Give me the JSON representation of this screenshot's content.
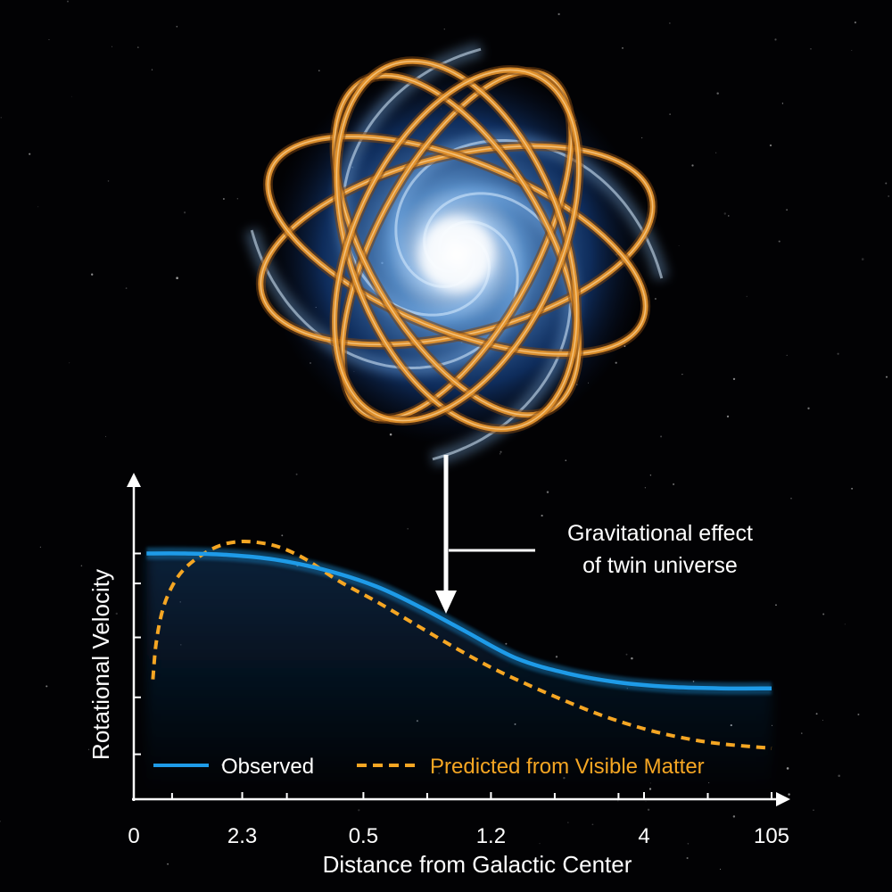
{
  "annotation": {
    "line1": "Gravitational effect",
    "line2": "of twin universe"
  },
  "colors": {
    "background": "#020204",
    "observed": "#1e9be8",
    "predicted": "#f5a623",
    "text": "#ffffff",
    "ring": "#e8962e"
  },
  "illustration": {
    "subject": "spiral-galaxy-with-orbit-rings"
  },
  "chart_data": {
    "type": "line",
    "xlabel": "Distance from Galactic Center",
    "ylabel": "Rotational Velocity",
    "x_tick_labels": [
      "0",
      "2.3",
      "0.5",
      "1.2",
      "4",
      "105"
    ],
    "x_tick_positions": [
      0,
      17,
      36,
      56,
      80,
      100
    ],
    "xlim": [
      0,
      100
    ],
    "ylim": [
      0,
      100
    ],
    "y_ticks": [
      15,
      34,
      54,
      72,
      82
    ],
    "grid": false,
    "legend_position": "bottom-left",
    "series": [
      {
        "name": "Observed",
        "style": "solid",
        "x": [
          2,
          8,
          15,
          22,
          30,
          38,
          45,
          52,
          60,
          68,
          76,
          84,
          92,
          100
        ],
        "y": [
          82,
          82,
          81.5,
          80,
          76.5,
          71,
          64,
          56,
          47,
          42,
          39,
          37.5,
          37,
          37
        ]
      },
      {
        "name": "Predicted from Visible Matter",
        "style": "dashed",
        "x": [
          3,
          3.5,
          4.5,
          6,
          8,
          11,
          14,
          17,
          20,
          23,
          27,
          32,
          38,
          44,
          50,
          56,
          62,
          68,
          74,
          80,
          86,
          92,
          100
        ],
        "y": [
          40,
          52,
          63,
          71,
          77,
          82,
          85,
          86,
          85.5,
          84,
          80,
          73,
          66,
          58.5,
          51,
          44,
          38,
          32.5,
          27.5,
          23.5,
          20.5,
          18.5,
          17
        ]
      }
    ]
  }
}
